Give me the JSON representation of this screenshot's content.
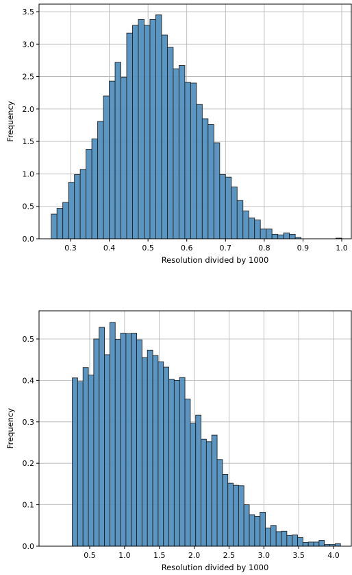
{
  "chart_data": [
    {
      "type": "bar",
      "subtype": "histogram",
      "title": "",
      "xlabel": "Resolution divided by 1000",
      "ylabel": "Frequency",
      "xlim": [
        0.25,
        1.0
      ],
      "ylim": [
        0,
        3.6
      ],
      "xticks": [
        0.3,
        0.4,
        0.5,
        0.6,
        0.7,
        0.8,
        0.9,
        1.0
      ],
      "xtick_labels": [
        "0.3",
        "0.4",
        "0.5",
        "0.6",
        "0.7",
        "0.8",
        "0.9",
        "1.0"
      ],
      "yticks": [
        0,
        0.5,
        1.0,
        1.5,
        2.0,
        2.5,
        3.0,
        3.5
      ],
      "ytick_labels": [
        "0.0",
        "0.5",
        "1.0",
        "1.5",
        "2.0",
        "2.5",
        "3.0",
        "3.5"
      ],
      "grid": true,
      "bar_color": "#5290c0",
      "edge_color": "#222222",
      "bin_start": 0.25,
      "bin_width": 0.015,
      "values": [
        0.38,
        0.47,
        0.56,
        0.87,
        0.99,
        1.07,
        1.38,
        1.54,
        1.81,
        2.2,
        2.43,
        2.72,
        2.49,
        3.17,
        3.29,
        3.38,
        3.29,
        3.38,
        3.45,
        3.14,
        2.95,
        2.62,
        2.67,
        2.41,
        2.4,
        2.07,
        1.85,
        1.76,
        1.48,
        0.99,
        0.95,
        0.8,
        0.59,
        0.43,
        0.32,
        0.29,
        0.15,
        0.15,
        0.07,
        0.06,
        0.09,
        0.07,
        0.02,
        0.0,
        0.0,
        0.0,
        0.0,
        0.0,
        0.0,
        0.01
      ]
    },
    {
      "type": "bar",
      "subtype": "histogram",
      "title": "",
      "xlabel": "Resolution divided by 1000",
      "ylabel": "Frequency",
      "xlim": [
        0.25,
        4.1
      ],
      "ylim": [
        0,
        0.565
      ],
      "xticks": [
        0.5,
        1.0,
        1.5,
        2.0,
        2.5,
        3.0,
        3.5,
        4.0
      ],
      "xtick_labels": [
        "0.5",
        "1.0",
        "1.5",
        "2.0",
        "2.5",
        "3.0",
        "3.5",
        "4.0"
      ],
      "yticks": [
        0,
        0.1,
        0.2,
        0.3,
        0.4,
        0.5
      ],
      "ytick_labels": [
        "0.0",
        "0.1",
        "0.2",
        "0.3",
        "0.4",
        "0.5"
      ],
      "grid": true,
      "bar_color": "#5290c0",
      "edge_color": "#222222",
      "bin_start": 0.25,
      "bin_width": 0.077,
      "values": [
        0.406,
        0.397,
        0.431,
        0.413,
        0.5,
        0.528,
        0.462,
        0.54,
        0.499,
        0.514,
        0.513,
        0.514,
        0.498,
        0.455,
        0.473,
        0.46,
        0.445,
        0.432,
        0.403,
        0.4,
        0.407,
        0.355,
        0.297,
        0.316,
        0.258,
        0.252,
        0.268,
        0.209,
        0.173,
        0.152,
        0.147,
        0.146,
        0.1,
        0.076,
        0.072,
        0.082,
        0.044,
        0.05,
        0.035,
        0.036,
        0.026,
        0.027,
        0.021,
        0.009,
        0.01,
        0.01,
        0.014,
        0.004,
        0.004,
        0.006
      ]
    }
  ]
}
